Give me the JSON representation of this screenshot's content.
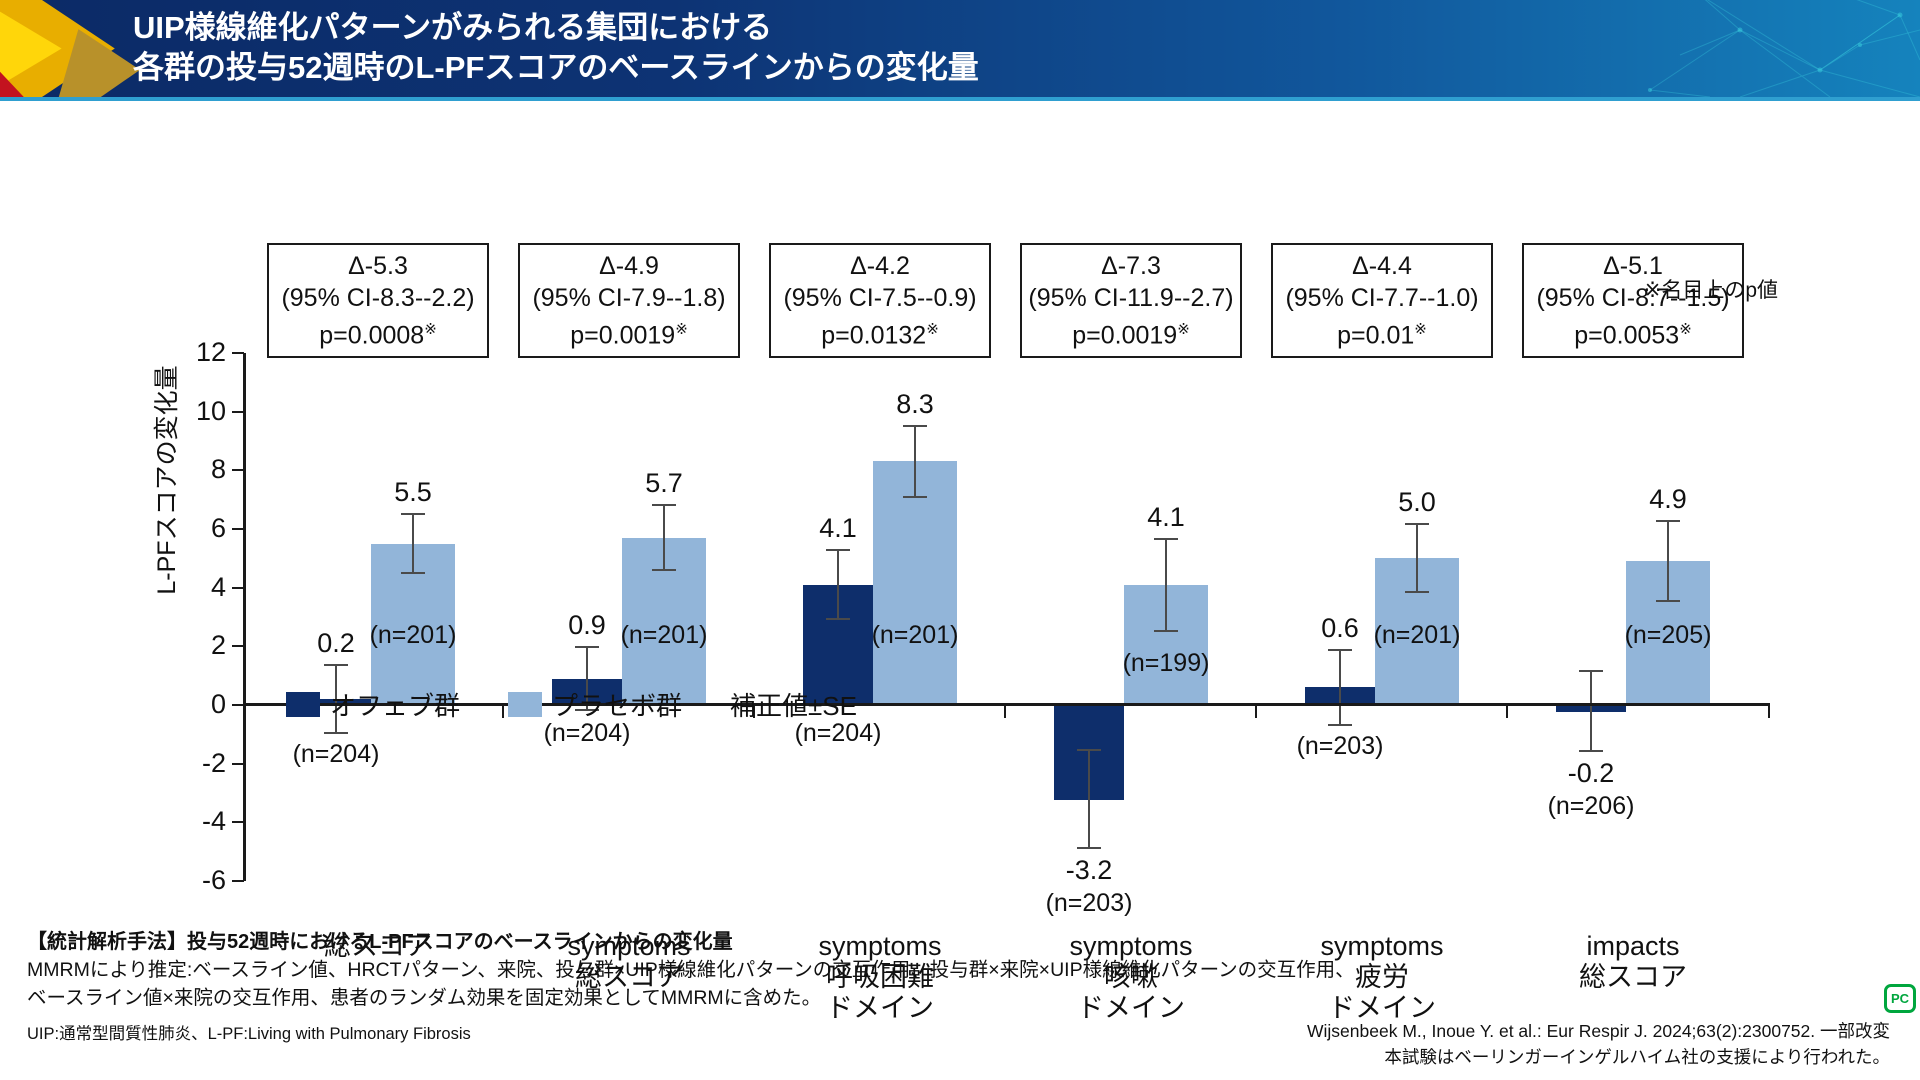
{
  "header": {
    "title_line1": "UIP様線維化パターンがみられる集団における",
    "title_line2": "各群の投与52週時のL-PFスコアのベースラインからの変化量"
  },
  "chart_data": {
    "type": "bar",
    "ylabel": "L-PFスコアの変化量",
    "ylim": [
      -6,
      12
    ],
    "yticks": [
      12,
      10,
      8,
      6,
      4,
      2,
      0,
      -2,
      -4,
      -6
    ],
    "grid": false,
    "legend_position": "below-left",
    "categories": [
      [
        "総スコア"
      ],
      [
        "symptoms",
        "総スコア"
      ],
      [
        "symptoms",
        "呼吸困難",
        "ドメイン"
      ],
      [
        "symptoms",
        "咳嗽",
        "ドメイン"
      ],
      [
        "symptoms",
        "疲労",
        "ドメイン"
      ],
      [
        "impacts",
        "総スコア"
      ]
    ],
    "series": [
      {
        "name": "オフェブ群",
        "color": "#0e2e6b",
        "values": [
          0.2,
          0.9,
          4.1,
          -3.2,
          0.6,
          -0.2
        ],
        "se": [
          1.2,
          1.1,
          1.2,
          1.7,
          1.3,
          1.4
        ],
        "value_labels": [
          "0.2",
          "0.9",
          "4.1",
          "-3.2",
          "0.6",
          "-0.2"
        ],
        "n_labels": [
          "(n=204)",
          "(n=204)",
          "(n=204)",
          "(n=203)",
          "(n=203)",
          "(n=206)"
        ]
      },
      {
        "name": "プラセボ群",
        "color": "#92b5d9",
        "values": [
          5.5,
          5.7,
          8.3,
          4.1,
          5.0,
          4.9
        ],
        "se": [
          1.05,
          1.15,
          1.25,
          1.6,
          1.2,
          1.4
        ],
        "value_labels": [
          "5.5",
          "5.7",
          "8.3",
          "4.1",
          "5.0",
          "4.9"
        ],
        "n_labels": [
          "(n=201)",
          "(n=201)",
          "(n=201)",
          "(n=199)",
          "(n=201)",
          "(n=205)"
        ]
      }
    ],
    "stats": [
      {
        "delta": "Δ-5.3",
        "ci": "(95% CI-8.3--2.2)",
        "p": "p=0.0008"
      },
      {
        "delta": "Δ-4.9",
        "ci": "(95% CI-7.9--1.8)",
        "p": "p=0.0019"
      },
      {
        "delta": "Δ-4.2",
        "ci": "(95% CI-7.5--0.9)",
        "p": "p=0.0132"
      },
      {
        "delta": "Δ-7.3",
        "ci": "(95% CI-11.9--2.7)",
        "p": "p=0.0019"
      },
      {
        "delta": "Δ-4.4",
        "ci": "(95% CI-7.7--1.0)",
        "p": "p=0.01"
      },
      {
        "delta": "Δ-5.1",
        "ci": "(95% CI-8.7--1.5)",
        "p": "p=0.0053"
      }
    ],
    "note_mark": "※",
    "p_note": "※名目上のp値",
    "legend_extra": "補正値±SE"
  },
  "footer": {
    "line1": "【統計解析手法】投与52週時におけるL-PFスコアのベースラインからの変化量",
    "line2": "MMRMにより推定:ベースライン値、HRCTパターン、来院、投与群×UIP様線維化パターンの交互作用、投与群×来院×UIP様線維化パターンの交互作用、",
    "line3": "ベースライン値×来院の交互作用、患者のランダム効果を固定効果としてMMRMに含めた。",
    "abbrev": "UIP:通常型間質性肺炎、L-PF:Living with Pulmonary Fibrosis",
    "cite1": "Wijsenbeek M., Inoue Y. et al.: Eur Respir J. 2024;63(2):2300752. 一部改変",
    "cite2": "本試験はベーリンガーインゲルハイム社の支援により行われた。"
  },
  "logo": {
    "text": "PC"
  }
}
